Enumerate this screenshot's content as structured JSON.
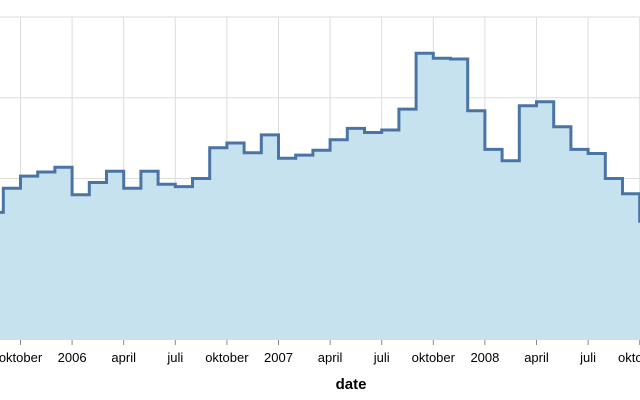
{
  "chart_data": {
    "type": "area",
    "interpolation": "step",
    "xlabel": "date",
    "ylabel": "",
    "title": "",
    "grid": true,
    "x_ticks": [
      {
        "date": "2005-10-01",
        "label": "oktober"
      },
      {
        "date": "2006-01-01",
        "label": "2006"
      },
      {
        "date": "2006-04-01",
        "label": "april"
      },
      {
        "date": "2006-07-01",
        "label": "juli"
      },
      {
        "date": "2006-10-01",
        "label": "oktober"
      },
      {
        "date": "2007-01-01",
        "label": "2007"
      },
      {
        "date": "2007-04-01",
        "label": "april"
      },
      {
        "date": "2007-07-01",
        "label": "juli"
      },
      {
        "date": "2007-10-01",
        "label": "oktober"
      },
      {
        "date": "2008-01-01",
        "label": "2008"
      },
      {
        "date": "2008-04-01",
        "label": "april"
      },
      {
        "date": "2008-07-01",
        "label": "juli"
      },
      {
        "date": "2008-10-01",
        "label": "oktober"
      }
    ],
    "ylim": [
      0,
      400
    ],
    "y_gridlines": [
      100,
      200,
      300,
      400
    ],
    "x": [
      "2005-08-01",
      "2005-09-01",
      "2005-10-01",
      "2005-11-01",
      "2005-12-01",
      "2006-01-01",
      "2006-02-01",
      "2006-03-01",
      "2006-04-01",
      "2006-05-01",
      "2006-06-01",
      "2006-07-01",
      "2006-08-01",
      "2006-09-01",
      "2006-10-01",
      "2006-11-01",
      "2006-12-01",
      "2007-01-01",
      "2007-02-01",
      "2007-03-01",
      "2007-04-01",
      "2007-05-01",
      "2007-06-01",
      "2007-07-01",
      "2007-08-01",
      "2007-09-01",
      "2007-10-01",
      "2007-11-01",
      "2007-12-01",
      "2008-01-01",
      "2008-02-01",
      "2008-03-01",
      "2008-04-01",
      "2008-05-01",
      "2008-06-01",
      "2008-07-01",
      "2008-08-01",
      "2008-09-01",
      "2008-10-01"
    ],
    "values": [
      158,
      188,
      203,
      208,
      214,
      180,
      195,
      209,
      188,
      209,
      193,
      190,
      200,
      238,
      244,
      232,
      254,
      225,
      229,
      235,
      248,
      262,
      257,
      260,
      286,
      355,
      349,
      348,
      284,
      236,
      222,
      290,
      295,
      264,
      236,
      231,
      200,
      181,
      147
    ],
    "colors": {
      "line": "#4a74a6",
      "fill": "#c6e2ee",
      "grid": "#dddddd"
    }
  }
}
